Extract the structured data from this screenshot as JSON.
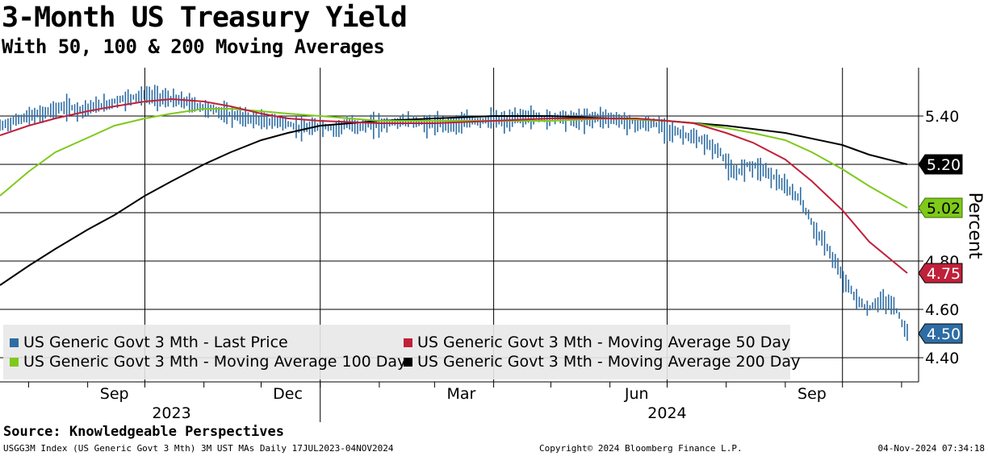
{
  "title": "3-Month US Treasury Yield",
  "subtitle": "With 50, 100 & 200 Moving Averages",
  "source": "Source: Knowledgeable Perspectives",
  "footer": {
    "left": "USGG3M Index (US Generic Govt 3 Mth) 3M UST MAs  Daily 17JUL2023-04NOV2024",
    "center": "Copyright© 2024 Bloomberg Finance L.P.",
    "right": "04-Nov-2024 07:34:18"
  },
  "colors": {
    "price": "#2e6da4",
    "ma50": "#c0213a",
    "ma100": "#7ec91a",
    "ma200": "#000000"
  },
  "chart_data": {
    "type": "line",
    "ylabel": "Percent",
    "ylim": [
      4.3,
      5.6
    ],
    "yticks": [
      4.4,
      4.6,
      4.8,
      5.0,
      5.2,
      5.4
    ],
    "ytick_labels": [
      "4.40",
      "4.60",
      "4.80",
      "",
      "",
      "5.40"
    ],
    "x_domain": [
      "2023-07-17",
      "2024-11-04"
    ],
    "month_ticks": [
      {
        "label": "Sep",
        "date": "2023-09-15"
      },
      {
        "label": "Dec",
        "date": "2023-12-15"
      },
      {
        "label": "Mar",
        "date": "2024-03-15"
      },
      {
        "label": "Jun",
        "date": "2024-06-15"
      },
      {
        "label": "Sep",
        "date": "2024-09-15"
      }
    ],
    "month_boundaries": [
      "2023-08-01",
      "2023-09-01",
      "2023-10-01",
      "2023-11-01",
      "2023-12-01",
      "2024-01-01",
      "2024-02-01",
      "2024-03-01",
      "2024-04-01",
      "2024-05-01",
      "2024-06-01",
      "2024-07-01",
      "2024-08-01",
      "2024-09-01",
      "2024-10-01",
      "2024-11-01"
    ],
    "quarter_gridlines": [
      "2023-10-01",
      "2024-01-01",
      "2024-04-01",
      "2024-07-01",
      "2024-10-01"
    ],
    "year_labels": [
      {
        "label": "2023",
        "date": "2023-10-15"
      },
      {
        "label": "2024",
        "date": "2024-07-01"
      }
    ],
    "year_divider": "2024-01-01",
    "series": [
      {
        "name": "US Generic Govt 3 Mth - Last Price",
        "key": "price",
        "last_label": "4.50",
        "points": [
          [
            "2023-07-17",
            5.36
          ],
          [
            "2023-07-24",
            5.38
          ],
          [
            "2023-07-31",
            5.4
          ],
          [
            "2023-08-07",
            5.41
          ],
          [
            "2023-08-14",
            5.43
          ],
          [
            "2023-08-21",
            5.44
          ],
          [
            "2023-08-28",
            5.43
          ],
          [
            "2023-09-04",
            5.44
          ],
          [
            "2023-09-11",
            5.45
          ],
          [
            "2023-09-18",
            5.47
          ],
          [
            "2023-09-25",
            5.48
          ],
          [
            "2023-10-02",
            5.49
          ],
          [
            "2023-10-09",
            5.48
          ],
          [
            "2023-10-16",
            5.47
          ],
          [
            "2023-10-23",
            5.46
          ],
          [
            "2023-10-30",
            5.44
          ],
          [
            "2023-11-06",
            5.43
          ],
          [
            "2023-11-13",
            5.41
          ],
          [
            "2023-11-20",
            5.4
          ],
          [
            "2023-11-27",
            5.39
          ],
          [
            "2023-12-04",
            5.38
          ],
          [
            "2023-12-11",
            5.38
          ],
          [
            "2023-12-18",
            5.36
          ],
          [
            "2023-12-25",
            5.35
          ],
          [
            "2024-01-01",
            5.36
          ],
          [
            "2024-01-08",
            5.35
          ],
          [
            "2024-01-15",
            5.37
          ],
          [
            "2024-01-22",
            5.36
          ],
          [
            "2024-01-29",
            5.37
          ],
          [
            "2024-02-05",
            5.37
          ],
          [
            "2024-02-12",
            5.38
          ],
          [
            "2024-02-19",
            5.38
          ],
          [
            "2024-02-26",
            5.37
          ],
          [
            "2024-03-04",
            5.37
          ],
          [
            "2024-03-11",
            5.37
          ],
          [
            "2024-03-18",
            5.38
          ],
          [
            "2024-03-25",
            5.38
          ],
          [
            "2024-04-01",
            5.39
          ],
          [
            "2024-04-08",
            5.38
          ],
          [
            "2024-04-15",
            5.4
          ],
          [
            "2024-04-22",
            5.4
          ],
          [
            "2024-04-29",
            5.39
          ],
          [
            "2024-05-06",
            5.4
          ],
          [
            "2024-05-13",
            5.39
          ],
          [
            "2024-05-20",
            5.39
          ],
          [
            "2024-05-27",
            5.4
          ],
          [
            "2024-06-03",
            5.39
          ],
          [
            "2024-06-10",
            5.38
          ],
          [
            "2024-06-17",
            5.37
          ],
          [
            "2024-06-24",
            5.37
          ],
          [
            "2024-07-01",
            5.35
          ],
          [
            "2024-07-08",
            5.33
          ],
          [
            "2024-07-15",
            5.31
          ],
          [
            "2024-07-22",
            5.29
          ],
          [
            "2024-07-29",
            5.25
          ],
          [
            "2024-08-05",
            5.16
          ],
          [
            "2024-08-12",
            5.2
          ],
          [
            "2024-08-19",
            5.19
          ],
          [
            "2024-08-26",
            5.15
          ],
          [
            "2024-09-02",
            5.1
          ],
          [
            "2024-09-09",
            5.06
          ],
          [
            "2024-09-16",
            4.94
          ],
          [
            "2024-09-23",
            4.86
          ],
          [
            "2024-09-30",
            4.75
          ],
          [
            "2024-10-07",
            4.66
          ],
          [
            "2024-10-14",
            4.6
          ],
          [
            "2024-10-21",
            4.64
          ],
          [
            "2024-10-28",
            4.62
          ],
          [
            "2024-11-04",
            4.5
          ]
        ]
      },
      {
        "name": "US Generic Govt 3 Mth - Moving Average 50 Day",
        "key": "ma50",
        "last_label": "4.75",
        "points": [
          [
            "2023-07-17",
            5.32
          ],
          [
            "2023-08-01",
            5.36
          ],
          [
            "2023-08-15",
            5.39
          ],
          [
            "2023-09-01",
            5.42
          ],
          [
            "2023-09-15",
            5.44
          ],
          [
            "2023-10-01",
            5.46
          ],
          [
            "2023-10-15",
            5.47
          ],
          [
            "2023-11-01",
            5.46
          ],
          [
            "2023-11-15",
            5.44
          ],
          [
            "2023-12-01",
            5.41
          ],
          [
            "2023-12-15",
            5.39
          ],
          [
            "2024-01-01",
            5.38
          ],
          [
            "2024-02-01",
            5.37
          ],
          [
            "2024-03-01",
            5.37
          ],
          [
            "2024-04-01",
            5.38
          ],
          [
            "2024-05-01",
            5.39
          ],
          [
            "2024-06-01",
            5.39
          ],
          [
            "2024-06-15",
            5.39
          ],
          [
            "2024-07-01",
            5.38
          ],
          [
            "2024-07-15",
            5.37
          ],
          [
            "2024-08-01",
            5.33
          ],
          [
            "2024-08-15",
            5.29
          ],
          [
            "2024-09-01",
            5.22
          ],
          [
            "2024-09-15",
            5.13
          ],
          [
            "2024-10-01",
            5.01
          ],
          [
            "2024-10-15",
            4.88
          ],
          [
            "2024-11-04",
            4.75
          ]
        ]
      },
      {
        "name": "US Generic Govt 3 Mth - Moving Average 100 Day",
        "key": "ma100",
        "last_label": "5.02",
        "points": [
          [
            "2023-07-17",
            5.07
          ],
          [
            "2023-08-01",
            5.17
          ],
          [
            "2023-08-15",
            5.25
          ],
          [
            "2023-09-01",
            5.31
          ],
          [
            "2023-09-15",
            5.36
          ],
          [
            "2023-10-01",
            5.39
          ],
          [
            "2023-10-15",
            5.41
          ],
          [
            "2023-11-01",
            5.43
          ],
          [
            "2023-11-15",
            5.43
          ],
          [
            "2023-12-01",
            5.42
          ],
          [
            "2023-12-15",
            5.41
          ],
          [
            "2024-01-01",
            5.4
          ],
          [
            "2024-02-01",
            5.38
          ],
          [
            "2024-03-01",
            5.38
          ],
          [
            "2024-04-01",
            5.38
          ],
          [
            "2024-05-01",
            5.38
          ],
          [
            "2024-06-01",
            5.39
          ],
          [
            "2024-07-01",
            5.38
          ],
          [
            "2024-07-15",
            5.37
          ],
          [
            "2024-08-01",
            5.35
          ],
          [
            "2024-08-15",
            5.33
          ],
          [
            "2024-09-01",
            5.3
          ],
          [
            "2024-09-15",
            5.25
          ],
          [
            "2024-10-01",
            5.18
          ],
          [
            "2024-10-15",
            5.11
          ],
          [
            "2024-11-04",
            5.02
          ]
        ]
      },
      {
        "name": "US Generic Govt 3 Mth - Moving Average 200 Day",
        "key": "ma200",
        "last_label": "5.20",
        "points": [
          [
            "2023-07-17",
            4.7
          ],
          [
            "2023-08-01",
            4.78
          ],
          [
            "2023-08-15",
            4.85
          ],
          [
            "2023-09-01",
            4.93
          ],
          [
            "2023-09-15",
            4.99
          ],
          [
            "2023-10-01",
            5.07
          ],
          [
            "2023-10-15",
            5.13
          ],
          [
            "2023-11-01",
            5.2
          ],
          [
            "2023-11-15",
            5.25
          ],
          [
            "2023-12-01",
            5.3
          ],
          [
            "2023-12-15",
            5.33
          ],
          [
            "2024-01-01",
            5.36
          ],
          [
            "2024-02-01",
            5.38
          ],
          [
            "2024-03-01",
            5.39
          ],
          [
            "2024-04-01",
            5.4
          ],
          [
            "2024-05-01",
            5.4
          ],
          [
            "2024-06-01",
            5.39
          ],
          [
            "2024-07-01",
            5.38
          ],
          [
            "2024-08-01",
            5.36
          ],
          [
            "2024-09-01",
            5.33
          ],
          [
            "2024-10-01",
            5.28
          ],
          [
            "2024-10-15",
            5.24
          ],
          [
            "2024-11-04",
            5.2
          ]
        ]
      }
    ]
  }
}
